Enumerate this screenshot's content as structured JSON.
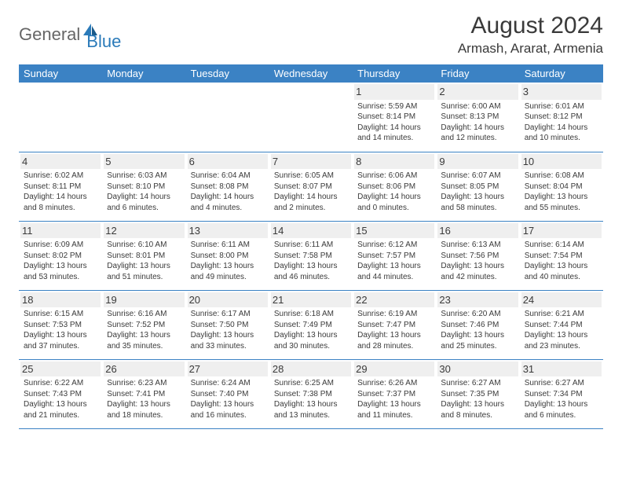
{
  "logo": {
    "text1": "General",
    "text2": "Blue"
  },
  "title": "August 2024",
  "location": "Armash, Ararat, Armenia",
  "colors": {
    "header_bg": "#3b82c4",
    "header_text": "#ffffff",
    "logo_gray": "#666666",
    "logo_blue": "#2a7ab9",
    "text": "#3a3a3a",
    "daynum_bg": "#efefef",
    "border": "#3b82c4"
  },
  "weekdays": [
    "Sunday",
    "Monday",
    "Tuesday",
    "Wednesday",
    "Thursday",
    "Friday",
    "Saturday"
  ],
  "weeks": [
    [
      null,
      null,
      null,
      null,
      {
        "n": "1",
        "sr": "5:59 AM",
        "ss": "8:14 PM",
        "dl": "14 hours and 14 minutes."
      },
      {
        "n": "2",
        "sr": "6:00 AM",
        "ss": "8:13 PM",
        "dl": "14 hours and 12 minutes."
      },
      {
        "n": "3",
        "sr": "6:01 AM",
        "ss": "8:12 PM",
        "dl": "14 hours and 10 minutes."
      }
    ],
    [
      {
        "n": "4",
        "sr": "6:02 AM",
        "ss": "8:11 PM",
        "dl": "14 hours and 8 minutes."
      },
      {
        "n": "5",
        "sr": "6:03 AM",
        "ss": "8:10 PM",
        "dl": "14 hours and 6 minutes."
      },
      {
        "n": "6",
        "sr": "6:04 AM",
        "ss": "8:08 PM",
        "dl": "14 hours and 4 minutes."
      },
      {
        "n": "7",
        "sr": "6:05 AM",
        "ss": "8:07 PM",
        "dl": "14 hours and 2 minutes."
      },
      {
        "n": "8",
        "sr": "6:06 AM",
        "ss": "8:06 PM",
        "dl": "14 hours and 0 minutes."
      },
      {
        "n": "9",
        "sr": "6:07 AM",
        "ss": "8:05 PM",
        "dl": "13 hours and 58 minutes."
      },
      {
        "n": "10",
        "sr": "6:08 AM",
        "ss": "8:04 PM",
        "dl": "13 hours and 55 minutes."
      }
    ],
    [
      {
        "n": "11",
        "sr": "6:09 AM",
        "ss": "8:02 PM",
        "dl": "13 hours and 53 minutes."
      },
      {
        "n": "12",
        "sr": "6:10 AM",
        "ss": "8:01 PM",
        "dl": "13 hours and 51 minutes."
      },
      {
        "n": "13",
        "sr": "6:11 AM",
        "ss": "8:00 PM",
        "dl": "13 hours and 49 minutes."
      },
      {
        "n": "14",
        "sr": "6:11 AM",
        "ss": "7:58 PM",
        "dl": "13 hours and 46 minutes."
      },
      {
        "n": "15",
        "sr": "6:12 AM",
        "ss": "7:57 PM",
        "dl": "13 hours and 44 minutes."
      },
      {
        "n": "16",
        "sr": "6:13 AM",
        "ss": "7:56 PM",
        "dl": "13 hours and 42 minutes."
      },
      {
        "n": "17",
        "sr": "6:14 AM",
        "ss": "7:54 PM",
        "dl": "13 hours and 40 minutes."
      }
    ],
    [
      {
        "n": "18",
        "sr": "6:15 AM",
        "ss": "7:53 PM",
        "dl": "13 hours and 37 minutes."
      },
      {
        "n": "19",
        "sr": "6:16 AM",
        "ss": "7:52 PM",
        "dl": "13 hours and 35 minutes."
      },
      {
        "n": "20",
        "sr": "6:17 AM",
        "ss": "7:50 PM",
        "dl": "13 hours and 33 minutes."
      },
      {
        "n": "21",
        "sr": "6:18 AM",
        "ss": "7:49 PM",
        "dl": "13 hours and 30 minutes."
      },
      {
        "n": "22",
        "sr": "6:19 AM",
        "ss": "7:47 PM",
        "dl": "13 hours and 28 minutes."
      },
      {
        "n": "23",
        "sr": "6:20 AM",
        "ss": "7:46 PM",
        "dl": "13 hours and 25 minutes."
      },
      {
        "n": "24",
        "sr": "6:21 AM",
        "ss": "7:44 PM",
        "dl": "13 hours and 23 minutes."
      }
    ],
    [
      {
        "n": "25",
        "sr": "6:22 AM",
        "ss": "7:43 PM",
        "dl": "13 hours and 21 minutes."
      },
      {
        "n": "26",
        "sr": "6:23 AM",
        "ss": "7:41 PM",
        "dl": "13 hours and 18 minutes."
      },
      {
        "n": "27",
        "sr": "6:24 AM",
        "ss": "7:40 PM",
        "dl": "13 hours and 16 minutes."
      },
      {
        "n": "28",
        "sr": "6:25 AM",
        "ss": "7:38 PM",
        "dl": "13 hours and 13 minutes."
      },
      {
        "n": "29",
        "sr": "6:26 AM",
        "ss": "7:37 PM",
        "dl": "13 hours and 11 minutes."
      },
      {
        "n": "30",
        "sr": "6:27 AM",
        "ss": "7:35 PM",
        "dl": "13 hours and 8 minutes."
      },
      {
        "n": "31",
        "sr": "6:27 AM",
        "ss": "7:34 PM",
        "dl": "13 hours and 6 minutes."
      }
    ]
  ],
  "labels": {
    "sunrise": "Sunrise: ",
    "sunset": "Sunset: ",
    "daylight": "Daylight: "
  }
}
